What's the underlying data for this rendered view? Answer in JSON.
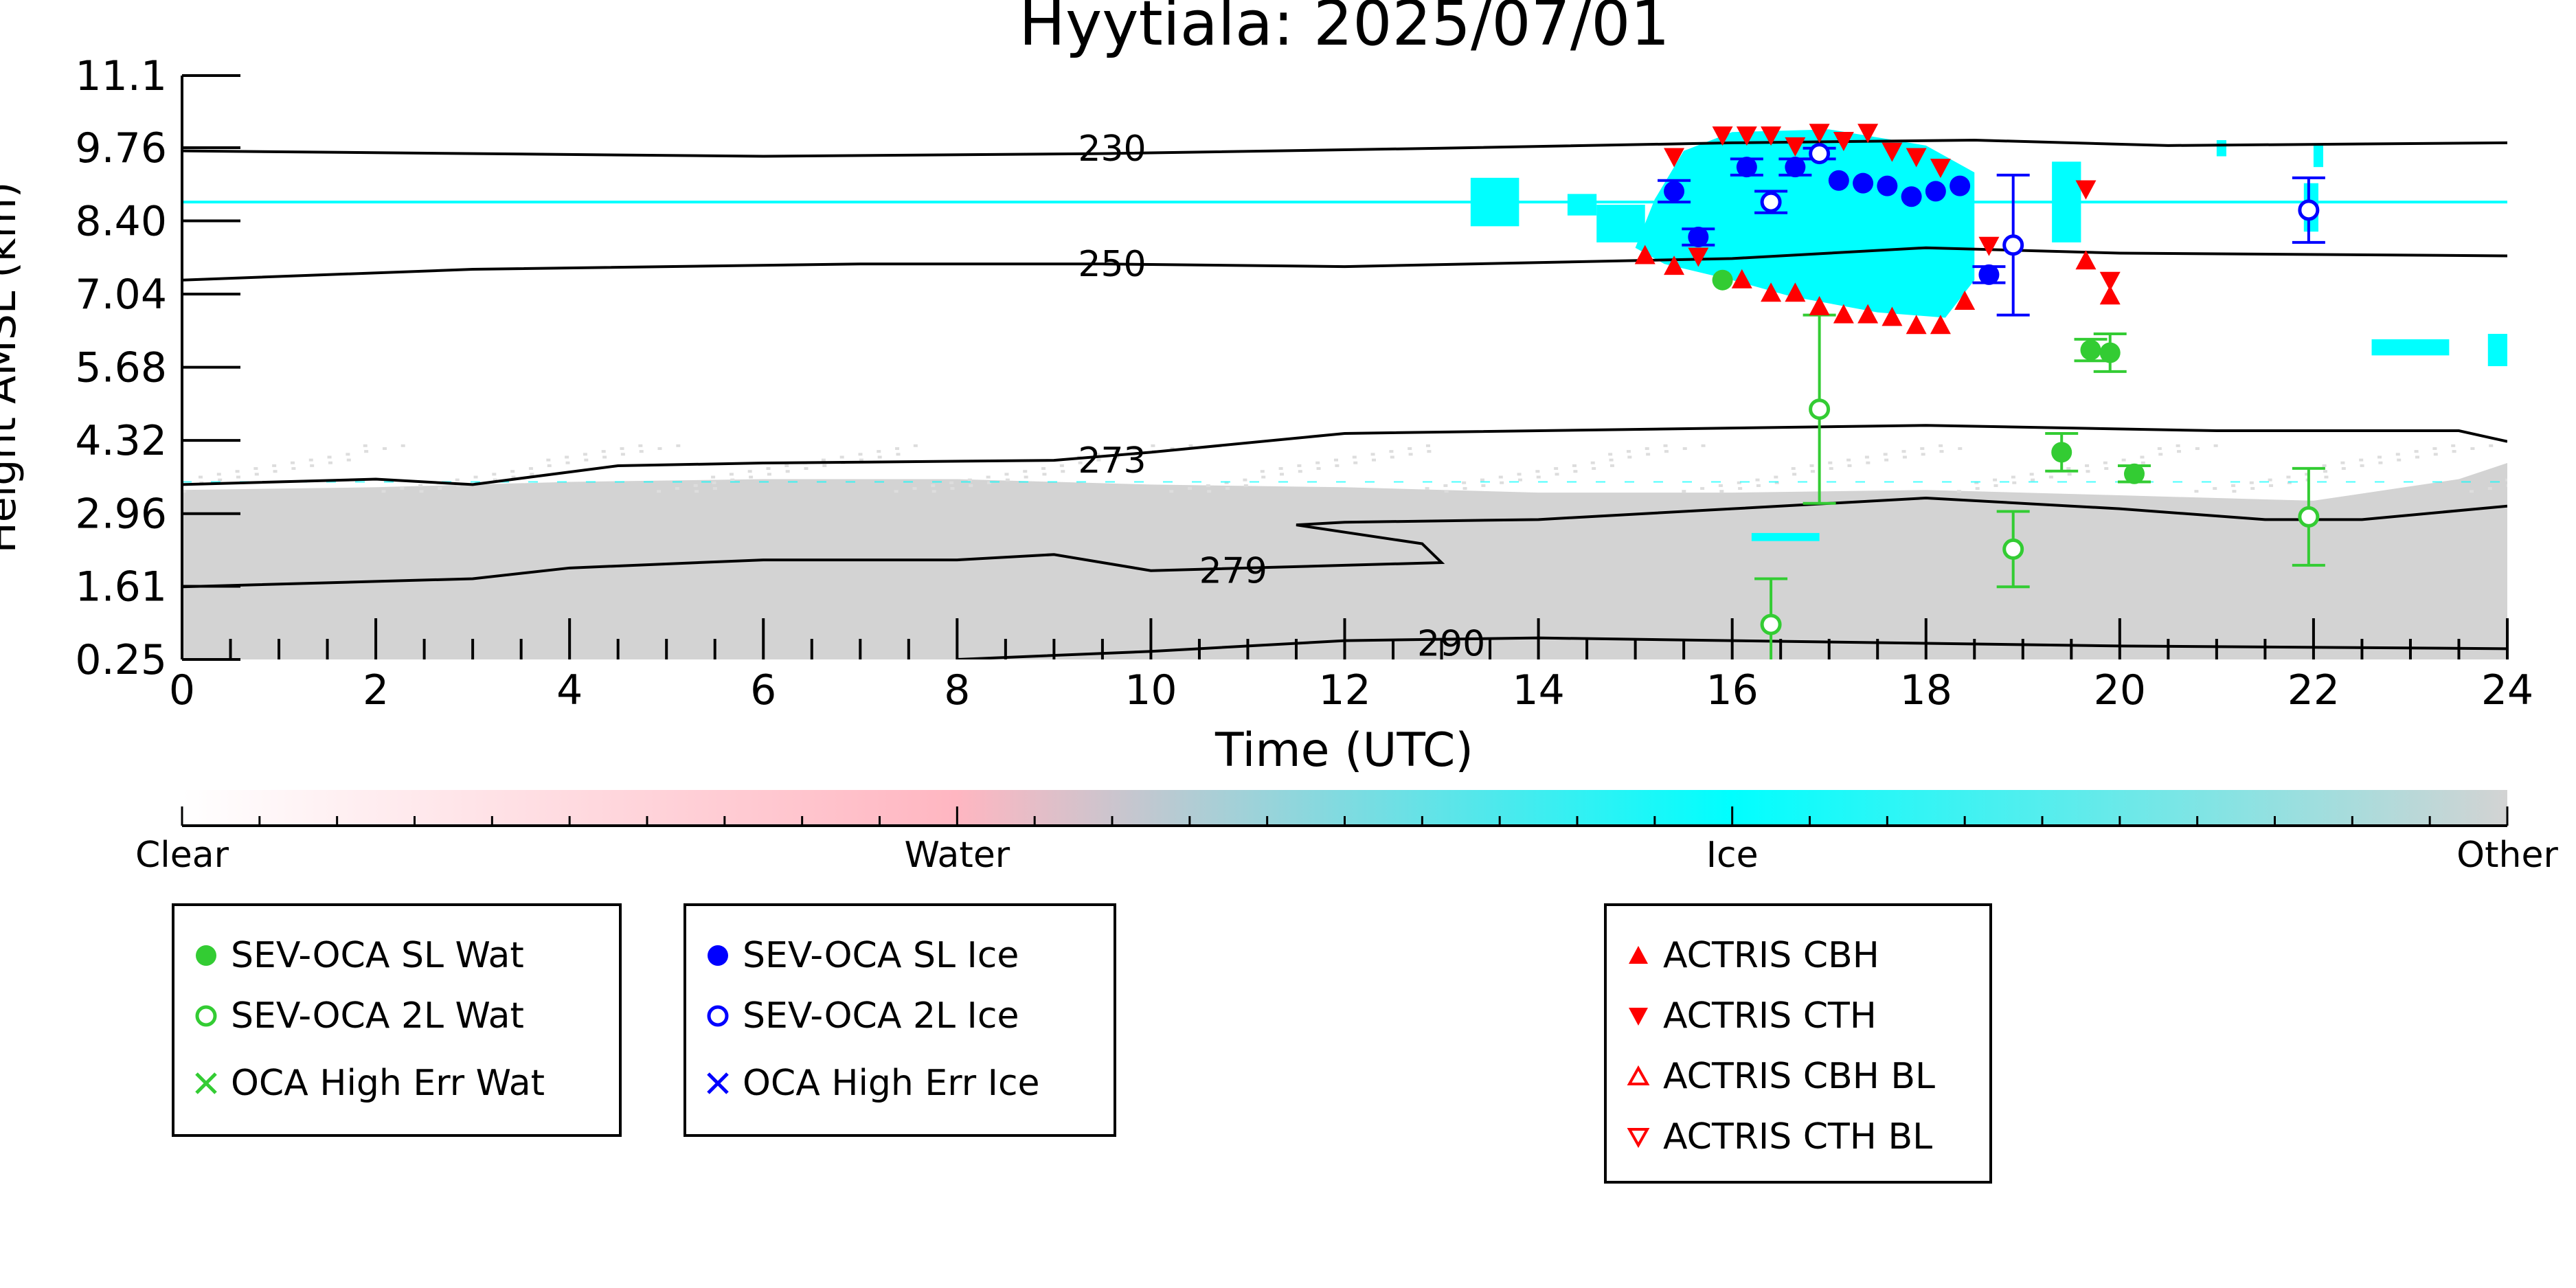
{
  "chart_data": {
    "type": "scatter",
    "title": "Hyytiala: 2025/07/01",
    "xlabel": "Time (UTC)",
    "ylabel": "Height AMSL (km)",
    "xlim": [
      0,
      24
    ],
    "ylim": [
      0.25,
      11.1
    ],
    "x_ticks": [
      0,
      2,
      4,
      6,
      8,
      10,
      12,
      14,
      16,
      18,
      20,
      22,
      24
    ],
    "y_ticks": [
      0.25,
      1.61,
      2.96,
      4.32,
      5.68,
      7.04,
      8.4,
      9.76,
      11.1
    ],
    "y_tick_labels": [
      "0.25",
      "1.61",
      "2.96",
      "4.32",
      "5.68",
      "7.04",
      "8.40",
      "9.76",
      "11.1"
    ],
    "background": {
      "description_classes": [
        "Clear",
        "Water",
        "Ice",
        "Other"
      ],
      "ice_cloud_color": "#00ffff",
      "other_color": "#d3d3d3",
      "ice_line_height_km": 8.75,
      "other_layer_top_km": 3.4,
      "main_cloud": {
        "t_start": 15.0,
        "t_end": 18.5,
        "z_bottom": 6.6,
        "z_top": 10.1
      }
    },
    "contours": [
      {
        "label": "230",
        "x": [
          0,
          6,
          9.5,
          13,
          16,
          18.5,
          20.5,
          24
        ],
        "y": [
          9.7,
          9.6,
          9.65,
          9.75,
          9.85,
          9.9,
          9.8,
          9.85
        ]
      },
      {
        "label": "250",
        "x": [
          0,
          3,
          7,
          9.5,
          12,
          16,
          18,
          20,
          24
        ],
        "y": [
          7.3,
          7.5,
          7.6,
          7.6,
          7.55,
          7.7,
          7.9,
          7.8,
          7.75
        ]
      },
      {
        "label": "273",
        "x": [
          0,
          2,
          3,
          4.5,
          6,
          9,
          10,
          12,
          16,
          18,
          21,
          23.5,
          24
        ],
        "y": [
          3.5,
          3.6,
          3.5,
          3.85,
          3.9,
          3.95,
          4.1,
          4.45,
          4.55,
          4.6,
          4.5,
          4.5,
          4.3
        ]
      },
      {
        "label": "279",
        "x": [
          0,
          2,
          3,
          4,
          6,
          8,
          9,
          10,
          12,
          13,
          12.8,
          11.5,
          12,
          14,
          16,
          18,
          20,
          21.5,
          22.5,
          24
        ],
        "y": [
          1.6,
          1.7,
          1.75,
          1.95,
          2.1,
          2.1,
          2.2,
          1.9,
          2.0,
          2.05,
          2.4,
          2.75,
          2.8,
          2.85,
          3.05,
          3.25,
          3.05,
          2.85,
          2.85,
          3.1
        ]
      },
      {
        "label": "290",
        "x": [
          8,
          10,
          12,
          14,
          16,
          18,
          20,
          24
        ],
        "y": [
          0.25,
          0.4,
          0.6,
          0.65,
          0.6,
          0.55,
          0.5,
          0.45
        ]
      }
    ],
    "series": [
      {
        "name": "SEV-OCA SL Wat",
        "marker": "filled-circle",
        "color": "#33cc33",
        "points": [
          {
            "x": 15.9,
            "y": 7.3
          },
          {
            "x": 19.4,
            "y": 4.1,
            "err": 0.35
          },
          {
            "x": 19.7,
            "y": 6.0,
            "err": 0.2
          },
          {
            "x": 19.9,
            "y": 5.95,
            "err": 0.35
          },
          {
            "x": 20.15,
            "y": 3.7,
            "err": 0.15
          }
        ]
      },
      {
        "name": "SEV-OCA 2L Wat",
        "marker": "open-circle",
        "color": "#33cc33",
        "points": [
          {
            "x": 16.4,
            "y": 0.9,
            "err": 0.85
          },
          {
            "x": 16.9,
            "y": 4.9,
            "err": 1.75
          },
          {
            "x": 18.9,
            "y": 2.3,
            "err": 0.7
          },
          {
            "x": 21.95,
            "y": 2.9,
            "err": 0.9
          }
        ]
      },
      {
        "name": "OCA High Err Wat",
        "marker": "x",
        "color": "#33cc33",
        "points": []
      },
      {
        "name": "SEV-OCA SL Ice",
        "marker": "filled-circle",
        "color": "#0000ff",
        "points": [
          {
            "x": 15.4,
            "y": 8.95,
            "err": 0.2
          },
          {
            "x": 15.65,
            "y": 8.1,
            "err": 0.15
          },
          {
            "x": 16.15,
            "y": 9.4,
            "err": 0.15
          },
          {
            "x": 16.65,
            "y": 9.4,
            "err": 0.15
          },
          {
            "x": 17.1,
            "y": 9.15
          },
          {
            "x": 17.35,
            "y": 9.1
          },
          {
            "x": 17.6,
            "y": 9.05
          },
          {
            "x": 17.85,
            "y": 8.85
          },
          {
            "x": 18.1,
            "y": 8.95
          },
          {
            "x": 18.35,
            "y": 9.05
          },
          {
            "x": 18.65,
            "y": 7.4,
            "err": 0.15
          }
        ]
      },
      {
        "name": "SEV-OCA 2L Ice",
        "marker": "open-circle",
        "color": "#0000ff",
        "points": [
          {
            "x": 16.4,
            "y": 8.75,
            "err": 0.2
          },
          {
            "x": 16.9,
            "y": 9.65,
            "err": 0.1
          },
          {
            "x": 18.9,
            "y": 7.95,
            "err": 1.3
          },
          {
            "x": 21.95,
            "y": 8.6,
            "err": 0.6
          }
        ]
      },
      {
        "name": "OCA High Err Ice",
        "marker": "x",
        "color": "#0000ff",
        "points": []
      },
      {
        "name": "ACTRIS CBH",
        "marker": "triangle-up",
        "color": "#ff0000",
        "points": [
          {
            "x": 15.1,
            "y": 7.75
          },
          {
            "x": 15.4,
            "y": 7.55
          },
          {
            "x": 16.1,
            "y": 7.3
          },
          {
            "x": 16.4,
            "y": 7.05
          },
          {
            "x": 16.65,
            "y": 7.05
          },
          {
            "x": 16.9,
            "y": 6.8
          },
          {
            "x": 17.15,
            "y": 6.65
          },
          {
            "x": 17.4,
            "y": 6.65
          },
          {
            "x": 17.65,
            "y": 6.6
          },
          {
            "x": 17.9,
            "y": 6.45
          },
          {
            "x": 18.15,
            "y": 6.45
          },
          {
            "x": 18.4,
            "y": 6.9
          },
          {
            "x": 19.65,
            "y": 7.65
          },
          {
            "x": 19.9,
            "y": 7.0
          }
        ]
      },
      {
        "name": "ACTRIS CTH",
        "marker": "triangle-down",
        "color": "#ff0000",
        "points": [
          {
            "x": 15.4,
            "y": 9.6
          },
          {
            "x": 15.65,
            "y": 7.75
          },
          {
            "x": 15.9,
            "y": 10.0
          },
          {
            "x": 16.15,
            "y": 10.0
          },
          {
            "x": 16.4,
            "y": 10.0
          },
          {
            "x": 16.65,
            "y": 9.8
          },
          {
            "x": 16.9,
            "y": 10.05
          },
          {
            "x": 17.15,
            "y": 9.9
          },
          {
            "x": 17.4,
            "y": 10.05
          },
          {
            "x": 17.65,
            "y": 9.7
          },
          {
            "x": 17.9,
            "y": 9.6
          },
          {
            "x": 18.15,
            "y": 9.4
          },
          {
            "x": 18.65,
            "y": 7.95
          },
          {
            "x": 19.65,
            "y": 9.0
          },
          {
            "x": 19.9,
            "y": 7.3
          }
        ]
      },
      {
        "name": "ACTRIS CBH BL",
        "marker": "open-triangle-up",
        "color": "#ff0000",
        "points": []
      },
      {
        "name": "ACTRIS CTH BL",
        "marker": "open-triangle-down",
        "color": "#ff0000",
        "points": []
      }
    ],
    "colorbar": {
      "labels": [
        "Clear",
        "Water",
        "Ice",
        "Other"
      ],
      "colors": [
        "#ffffff",
        "#ffb6c1",
        "#00ffff",
        "#d3d3d3"
      ]
    },
    "legends": [
      {
        "entries": [
          "SEV-OCA SL Wat",
          "SEV-OCA 2L Wat",
          "OCA High Err Wat"
        ]
      },
      {
        "entries": [
          "SEV-OCA SL Ice",
          "SEV-OCA 2L Ice",
          "OCA High Err Ice"
        ]
      },
      {
        "entries": [
          "ACTRIS CBH",
          "ACTRIS CTH",
          "ACTRIS CBH BL",
          "ACTRIS CTH BL"
        ]
      }
    ]
  }
}
